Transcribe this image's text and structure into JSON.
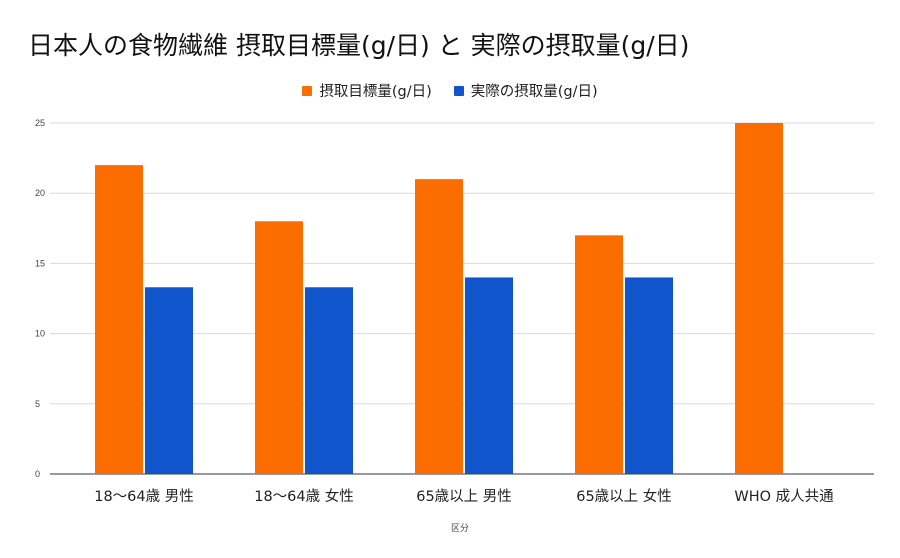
{
  "chart_data": {
    "type": "bar",
    "title": "日本人の食物繊維 摂取目標量(g/日) と 実際の摂取量(g/日)",
    "xlabel": "区分",
    "ylabel": "",
    "categories": [
      "18〜64歳 男性",
      "18〜64歳 女性",
      "65歳以上 男性",
      "65歳以上 女性",
      "WHO 成人共通"
    ],
    "series": [
      {
        "name": "摂取目標量(g/日)",
        "color": "#fb6d00",
        "values": [
          22,
          18,
          21,
          17,
          25
        ]
      },
      {
        "name": "実際の摂取量(g/日)",
        "color": "#1155cc",
        "values": [
          13.3,
          13.3,
          14,
          14,
          null
        ]
      }
    ],
    "ylim": [
      0,
      25
    ],
    "yticks": [
      0,
      5,
      10,
      15,
      20,
      25
    ],
    "grid": true,
    "legend_position": "top-center"
  }
}
